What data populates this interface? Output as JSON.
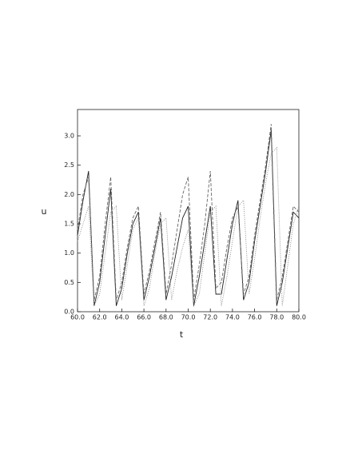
{
  "chart_data": {
    "type": "line",
    "x_label": "t",
    "y_label": "u",
    "x": [
      60.0,
      60.5,
      61.0,
      61.5,
      62.0,
      62.5,
      63.0,
      63.5,
      64.0,
      64.5,
      65.0,
      65.5,
      66.0,
      66.5,
      67.0,
      67.5,
      68.0,
      68.5,
      69.0,
      69.5,
      70.0,
      70.5,
      71.0,
      71.5,
      72.0,
      72.5,
      73.0,
      73.5,
      74.0,
      74.5,
      75.0,
      75.5,
      76.0,
      76.5,
      77.0,
      77.5,
      78.0,
      78.5,
      79.0,
      79.5,
      80.0
    ],
    "series": [
      {
        "color": "#222222",
        "style": "solid",
        "values": [
          1.3,
          1.9,
          2.4,
          0.1,
          0.5,
          1.3,
          2.1,
          0.1,
          0.4,
          1.0,
          1.5,
          1.7,
          0.2,
          0.6,
          1.1,
          1.6,
          0.2,
          0.6,
          1.1,
          1.6,
          1.8,
          0.1,
          0.6,
          1.2,
          1.8,
          0.3,
          0.3,
          0.9,
          1.5,
          1.9,
          0.2,
          0.5,
          1.2,
          1.8,
          2.4,
          3.1,
          0.1,
          0.5,
          1.1,
          1.7,
          1.6
        ]
      },
      {
        "color": "#666666",
        "style": "dashed",
        "values": [
          1.4,
          2.0,
          2.3,
          0.2,
          0.6,
          1.5,
          2.3,
          0.2,
          0.5,
          1.1,
          1.6,
          1.8,
          0.3,
          0.7,
          1.2,
          1.7,
          0.3,
          0.8,
          1.4,
          2.0,
          2.3,
          0.2,
          0.8,
          1.5,
          2.4,
          0.4,
          0.5,
          1.1,
          1.6,
          1.8,
          0.3,
          0.6,
          1.3,
          1.9,
          2.5,
          3.2,
          0.2,
          0.6,
          1.2,
          1.8,
          1.7
        ]
      },
      {
        "color": "#888888",
        "style": "dotted",
        "values": [
          1.2,
          1.5,
          1.8,
          0.1,
          0.3,
          1.0,
          1.7,
          1.8,
          0.2,
          0.8,
          1.4,
          1.6,
          0.1,
          0.4,
          1.0,
          1.5,
          1.6,
          0.2,
          0.7,
          1.1,
          1.4,
          0.1,
          0.3,
          1.0,
          1.7,
          1.8,
          0.1,
          0.6,
          1.2,
          1.8,
          1.9,
          0.3,
          0.9,
          1.6,
          2.2,
          2.7,
          2.8,
          0.1,
          0.8,
          1.5,
          1.8
        ]
      }
    ],
    "xlim": [
      60,
      80
    ],
    "ylim": [
      0,
      3.45
    ],
    "xticks": [
      {
        "value": 60,
        "label": "60.0"
      },
      {
        "value": 62,
        "label": "62.0"
      },
      {
        "value": 64,
        "label": "64.0"
      },
      {
        "value": 66,
        "label": "66.0"
      },
      {
        "value": 68,
        "label": "68.0"
      },
      {
        "value": 70,
        "label": "70.0"
      },
      {
        "value": 72,
        "label": "72.0"
      },
      {
        "value": 74,
        "label": "74.0"
      },
      {
        "value": 76,
        "label": "76.0"
      },
      {
        "value": 78,
        "label": "78.0"
      },
      {
        "value": 80,
        "label": "80.0"
      }
    ],
    "yticks": [
      {
        "value": 0,
        "label": "0.0"
      },
      {
        "value": 0.5,
        "label": "0.5"
      },
      {
        "value": 1,
        "label": "1.0"
      },
      {
        "value": 1.5,
        "label": "1.5"
      },
      {
        "value": 2,
        "label": "2.0"
      },
      {
        "value": 2.5,
        "label": "2.5"
      },
      {
        "value": 3,
        "label": "3.0"
      }
    ]
  }
}
